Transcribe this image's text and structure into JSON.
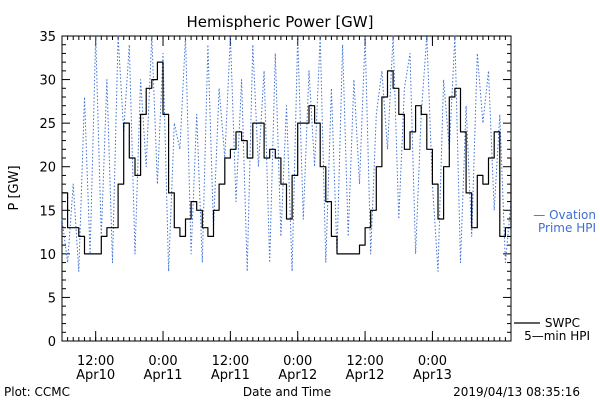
{
  "chart_data": {
    "type": "line",
    "title": "Hemispheric Power [GW]",
    "ylabel": "P [GW]",
    "xlabel": "Date and Time",
    "ylim": [
      0,
      35
    ],
    "xlim": [
      "2019-04-10 06:00",
      "2019-04-13 14:00"
    ],
    "yticks": [
      0,
      5,
      10,
      15,
      20,
      25,
      30,
      35
    ],
    "xticks": [
      {
        "top": "12:00",
        "bottom": "Apr10",
        "t": "2019-04-10 12:00"
      },
      {
        "top": "0:00",
        "bottom": "Apr11",
        "t": "2019-04-11 00:00"
      },
      {
        "top": "12:00",
        "bottom": "Apr11",
        "t": "2019-04-11 12:00"
      },
      {
        "top": "0:00",
        "bottom": "Apr12",
        "t": "2019-04-12 00:00"
      },
      {
        "top": "12:00",
        "bottom": "Apr12",
        "t": "2019-04-12 12:00"
      },
      {
        "top": "0:00",
        "bottom": "Apr13",
        "t": "2019-04-13 00:00"
      }
    ],
    "series": [
      {
        "name": "SWPC 5-min HPI",
        "color": "#000000",
        "style": "solid",
        "x": [
          "04-10 06:00",
          "04-10 07:00",
          "04-10 08:00",
          "04-10 09:00",
          "04-10 10:00",
          "04-10 11:00",
          "04-10 12:00",
          "04-10 13:00",
          "04-10 14:00",
          "04-10 15:00",
          "04-10 16:00",
          "04-10 17:00",
          "04-10 18:00",
          "04-10 19:00",
          "04-10 20:00",
          "04-10 21:00",
          "04-10 22:00",
          "04-10 23:00",
          "04-11 00:00",
          "04-11 01:00",
          "04-11 02:00",
          "04-11 03:00",
          "04-11 04:00",
          "04-11 05:00",
          "04-11 06:00",
          "04-11 07:00",
          "04-11 08:00",
          "04-11 09:00",
          "04-11 10:00",
          "04-11 11:00",
          "04-11 12:00",
          "04-11 13:00",
          "04-11 14:00",
          "04-11 15:00",
          "04-11 16:00",
          "04-11 17:00",
          "04-11 18:00",
          "04-11 19:00",
          "04-11 20:00",
          "04-11 21:00",
          "04-11 22:00",
          "04-11 23:00",
          "04-12 00:00",
          "04-12 01:00",
          "04-12 02:00",
          "04-12 03:00",
          "04-12 04:00",
          "04-12 05:00",
          "04-12 06:00",
          "04-12 07:00",
          "04-12 08:00",
          "04-12 09:00",
          "04-12 10:00",
          "04-12 11:00",
          "04-12 12:00",
          "04-12 13:00",
          "04-12 14:00",
          "04-12 15:00",
          "04-12 16:00",
          "04-12 17:00",
          "04-12 18:00",
          "04-12 19:00",
          "04-12 20:00",
          "04-12 21:00",
          "04-12 22:00",
          "04-12 23:00",
          "04-13 00:00",
          "04-13 01:00",
          "04-13 02:00",
          "04-13 03:00",
          "04-13 04:00",
          "04-13 05:00",
          "04-13 06:00",
          "04-13 07:00",
          "04-13 08:00",
          "04-13 09:00",
          "04-13 10:00",
          "04-13 11:00",
          "04-13 12:00",
          "04-13 13:00",
          "04-13 14:00"
        ],
        "values": [
          17,
          13,
          13,
          12,
          10,
          10,
          10,
          12,
          13,
          13,
          18,
          25,
          21,
          19,
          26,
          29,
          30,
          32,
          26,
          17,
          13,
          12,
          14,
          16,
          15,
          13,
          12,
          15,
          18,
          21,
          22,
          24,
          23,
          21,
          25,
          25,
          21,
          22,
          21,
          18,
          14,
          19,
          25,
          25,
          27,
          25,
          20,
          16,
          12,
          10,
          10,
          10,
          10,
          11,
          13,
          15,
          20,
          28,
          31,
          29,
          26,
          22,
          24,
          27,
          26,
          22,
          18,
          14,
          20,
          28,
          29,
          24,
          17,
          13,
          19,
          18,
          21,
          24,
          12,
          13,
          21
        ]
      },
      {
        "name": "Ovation Prime HPI",
        "color": "#3d6fd1",
        "style": "dotted",
        "x": [
          "04-10 06:00",
          "04-10 07:00",
          "04-10 08:00",
          "04-10 09:00",
          "04-10 10:00",
          "04-10 11:00",
          "04-10 12:00",
          "04-10 13:00",
          "04-10 14:00",
          "04-10 15:00",
          "04-10 16:00",
          "04-10 17:00",
          "04-10 18:00",
          "04-10 19:00",
          "04-10 20:00",
          "04-10 21:00",
          "04-10 22:00",
          "04-10 23:00",
          "04-11 00:00",
          "04-11 01:00",
          "04-11 02:00",
          "04-11 03:00",
          "04-11 04:00",
          "04-11 05:00",
          "04-11 06:00",
          "04-11 07:00",
          "04-11 08:00",
          "04-11 09:00",
          "04-11 10:00",
          "04-11 11:00",
          "04-11 12:00",
          "04-11 13:00",
          "04-11 14:00",
          "04-11 15:00",
          "04-11 16:00",
          "04-11 17:00",
          "04-11 18:00",
          "04-11 19:00",
          "04-11 20:00",
          "04-11 21:00",
          "04-11 22:00",
          "04-11 23:00",
          "04-12 00:00",
          "04-12 01:00",
          "04-12 02:00",
          "04-12 03:00",
          "04-12 04:00",
          "04-12 05:00",
          "04-12 06:00",
          "04-12 07:00",
          "04-12 08:00",
          "04-12 09:00",
          "04-12 10:00",
          "04-12 11:00",
          "04-12 12:00",
          "04-12 13:00",
          "04-12 14:00",
          "04-12 15:00",
          "04-12 16:00",
          "04-12 17:00",
          "04-12 18:00",
          "04-12 19:00",
          "04-12 20:00",
          "04-12 21:00",
          "04-12 22:00",
          "04-12 23:00",
          "04-13 00:00",
          "04-13 01:00",
          "04-13 02:00",
          "04-13 03:00",
          "04-13 04:00",
          "04-13 05:00",
          "04-13 06:00",
          "04-13 07:00",
          "04-13 08:00",
          "04-13 09:00",
          "04-13 10:00",
          "04-13 11:00",
          "04-13 12:00",
          "04-13 13:00",
          "04-13 14:00"
        ],
        "values": [
          14,
          9,
          18,
          8,
          28,
          10,
          35,
          12,
          30,
          9,
          35,
          24,
          34,
          10,
          30,
          20,
          35,
          18,
          33,
          8,
          25,
          22,
          35,
          10,
          26,
          9,
          34,
          13,
          29,
          21,
          35,
          16,
          30,
          8,
          34,
          20,
          31,
          9,
          33,
          12,
          27,
          8,
          35,
          14,
          31,
          20,
          35,
          9,
          29,
          10,
          34,
          12,
          30,
          18,
          35,
          10,
          26,
          31,
          22,
          35,
          14,
          29,
          33,
          10,
          26,
          35,
          18,
          8,
          30,
          22,
          35,
          9,
          27,
          12,
          33,
          25,
          31,
          15,
          26,
          9,
          16
        ]
      }
    ],
    "legend": [
      {
        "label_lines": [
          "— Ovation",
          "Prime HPI"
        ],
        "color": "#3d6fd1",
        "placement": "right"
      },
      {
        "label_lines": [
          "SWPC",
          "5-min HPI"
        ],
        "color": "#000000",
        "placement": "right"
      }
    ],
    "grid": false
  },
  "footer": {
    "plot_credit": "Plot: CCMC",
    "timestamp": "2019/04/13 08:35:16"
  }
}
